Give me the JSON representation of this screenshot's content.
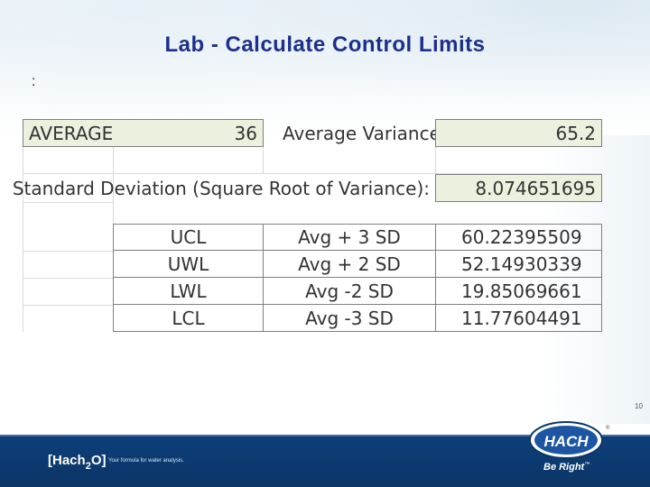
{
  "title": "Lab - Calculate Control Limits",
  "colon_text": ":",
  "table": {
    "average_label": "AVERAGE",
    "average_value": "36",
    "avg_variance_label": "Average Variance:",
    "avg_variance_value": "65.2",
    "sd_label": "Standard Deviation (Square Root of Variance):",
    "sd_value": "8.074651695",
    "limits": [
      {
        "name": "UCL",
        "formula": "Avg + 3 SD",
        "value": "60.22395509"
      },
      {
        "name": "UWL",
        "formula": "Avg + 2 SD",
        "value": "52.14930339"
      },
      {
        "name": "LWL",
        "formula": "Avg -2 SD",
        "value": "19.85069661"
      },
      {
        "name": "LCL",
        "formula": "Avg -3 SD",
        "value": "11.77604491"
      }
    ]
  },
  "footer": {
    "brand": "[Hach",
    "brand_sub": "2",
    "brand_end": "O]",
    "tagline": "Your formula for water analysis.",
    "logo_text": "HACH",
    "slogan": "Be Right",
    "trademark": "™",
    "registered": "®",
    "page_number": "10"
  },
  "colors": {
    "title": "#1c2f8c",
    "highlight": "#ebf1de",
    "footer": "#0e3f7a"
  }
}
